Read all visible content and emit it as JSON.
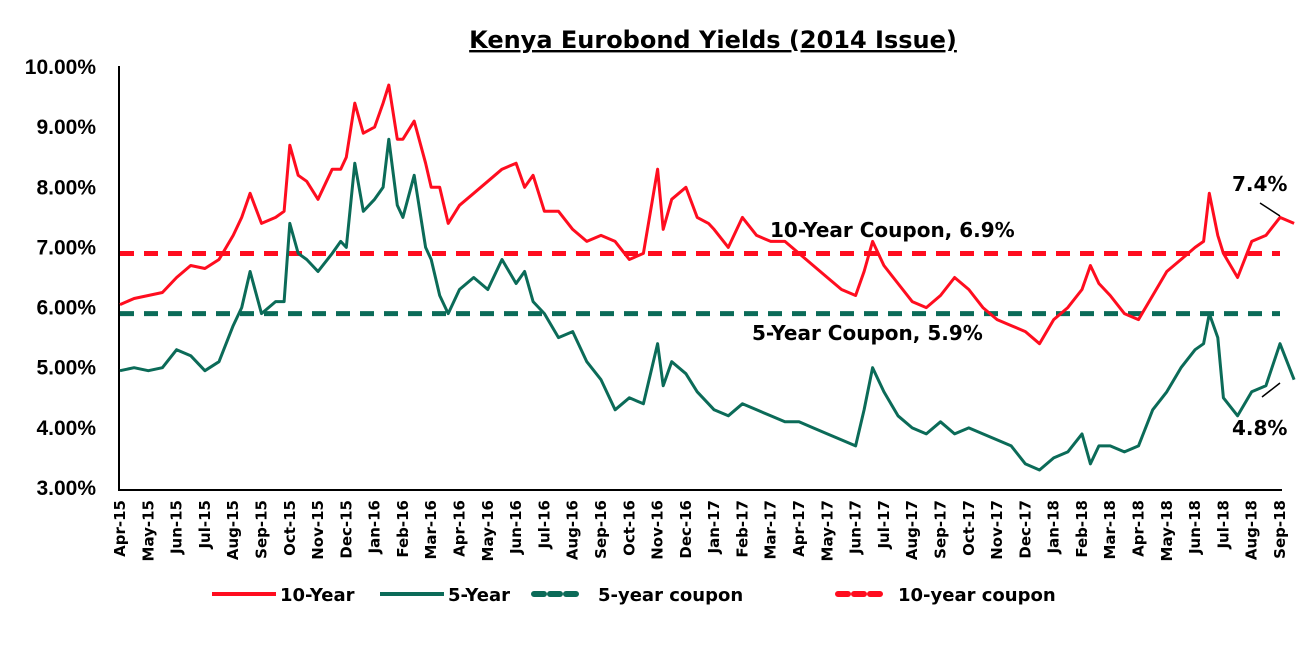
{
  "chart_data": {
    "type": "line",
    "title": "Kenya Eurobond Yields (2014 Issue)",
    "xlabel": "",
    "ylabel": "",
    "ylim": [
      3.0,
      10.0
    ],
    "yticks": [
      "10.00%",
      "9.00%",
      "8.00%",
      "7.00%",
      "6.00%",
      "5.00%",
      "4.00%",
      "3.00%"
    ],
    "ytick_values": [
      10,
      9,
      8,
      7,
      6,
      5,
      4,
      3
    ],
    "categories": [
      "Apr-15",
      "May-15",
      "Jun-15",
      "Jul-15",
      "Aug-15",
      "Sep-15",
      "Oct-15",
      "Nov-15",
      "Dec-15",
      "Jan-16",
      "Feb-16",
      "Mar-16",
      "Apr-16",
      "May-16",
      "Jun-16",
      "Jul-16",
      "Aug-16",
      "Sep-16",
      "Oct-16",
      "Nov-16",
      "Dec-16",
      "Jan-17",
      "Feb-17",
      "Mar-17",
      "Apr-17",
      "May-17",
      "Jun-17",
      "Jul-17",
      "Aug-17",
      "Sep-17",
      "Oct-17",
      "Nov-17",
      "Dec-17",
      "Jan-18",
      "Feb-18",
      "Mar-18",
      "Apr-18",
      "May-18",
      "Jun-18",
      "Jul-18",
      "Aug-18",
      "Sep-18"
    ],
    "grid": false,
    "legend_position": "bottom",
    "series": [
      {
        "name": "10-Year",
        "color": "#ff0d1f",
        "style": "solid",
        "x": [
          0,
          0.5,
          1,
          1.5,
          2,
          2.5,
          3,
          3.5,
          4,
          4.3,
          4.6,
          5,
          5.5,
          5.8,
          6,
          6.3,
          6.6,
          7,
          7.5,
          7.8,
          8,
          8.3,
          8.6,
          9,
          9.3,
          9.5,
          9.8,
          10,
          10.4,
          10.8,
          11,
          11.3,
          11.6,
          12,
          12.5,
          13,
          13.5,
          14,
          14.3,
          14.6,
          15,
          15.5,
          16,
          16.5,
          17,
          17.5,
          18,
          18.5,
          19,
          19.2,
          19.5,
          20,
          20.4,
          20.8,
          21,
          21.5,
          22,
          22.5,
          23,
          23.5,
          24,
          24.5,
          25,
          25.5,
          26,
          26.3,
          26.6,
          27,
          27.5,
          28,
          28.5,
          29,
          29.5,
          30,
          30.5,
          31,
          31.5,
          32,
          32.5,
          33,
          33.5,
          34,
          34.3,
          34.6,
          35,
          35.5,
          36,
          36.5,
          37,
          37.5,
          38,
          38.3,
          38.5,
          38.8,
          39,
          39.5,
          40,
          40.5,
          41,
          41.5
        ],
        "values": [
          6.05,
          6.15,
          6.2,
          6.25,
          6.5,
          6.7,
          6.65,
          6.8,
          7.2,
          7.5,
          7.9,
          7.4,
          7.5,
          7.6,
          8.7,
          8.2,
          8.1,
          7.8,
          8.3,
          8.3,
          8.5,
          9.4,
          8.9,
          9.0,
          9.4,
          9.7,
          8.8,
          8.8,
          9.1,
          8.4,
          8.0,
          8.0,
          7.4,
          7.7,
          7.9,
          8.1,
          8.3,
          8.4,
          8.0,
          8.2,
          7.6,
          7.6,
          7.3,
          7.1,
          7.2,
          7.1,
          6.8,
          6.9,
          8.3,
          7.3,
          7.8,
          8.0,
          7.5,
          7.4,
          7.3,
          7.0,
          7.5,
          7.2,
          7.1,
          7.1,
          6.9,
          6.7,
          6.5,
          6.3,
          6.2,
          6.6,
          7.1,
          6.7,
          6.4,
          6.1,
          6.0,
          6.2,
          6.5,
          6.3,
          6.0,
          5.8,
          5.7,
          5.6,
          5.4,
          5.8,
          6.0,
          6.3,
          6.7,
          6.4,
          6.2,
          5.9,
          5.8,
          6.2,
          6.6,
          6.8,
          7.0,
          7.1,
          7.9,
          7.2,
          6.9,
          6.5,
          7.1,
          7.2,
          7.5,
          7.4
        ]
      },
      {
        "name": "5-Year",
        "color": "#0b6b58",
        "style": "solid",
        "x": [
          0,
          0.5,
          1,
          1.5,
          2,
          2.5,
          3,
          3.5,
          4,
          4.3,
          4.6,
          5,
          5.5,
          5.8,
          6,
          6.3,
          6.6,
          7,
          7.5,
          7.8,
          8,
          8.3,
          8.6,
          9,
          9.3,
          9.5,
          9.8,
          10,
          10.4,
          10.8,
          11,
          11.3,
          11.6,
          12,
          12.5,
          13,
          13.5,
          14,
          14.3,
          14.6,
          15,
          15.5,
          16,
          16.5,
          17,
          17.5,
          18,
          18.5,
          19,
          19.2,
          19.5,
          20,
          20.4,
          20.8,
          21,
          21.5,
          22,
          22.5,
          23,
          23.5,
          24,
          24.5,
          25,
          25.5,
          26,
          26.3,
          26.6,
          27,
          27.5,
          28,
          28.5,
          29,
          29.5,
          30,
          30.5,
          31,
          31.5,
          32,
          32.5,
          33,
          33.5,
          34,
          34.3,
          34.6,
          35,
          35.5,
          36,
          36.5,
          37,
          37.5,
          38,
          38.3,
          38.5,
          38.8,
          39,
          39.5,
          40,
          40.5,
          41,
          41.5
        ],
        "values": [
          4.95,
          5.0,
          4.95,
          5.0,
          5.3,
          5.2,
          4.95,
          5.1,
          5.7,
          6.0,
          6.6,
          5.9,
          6.1,
          6.1,
          7.4,
          6.9,
          6.8,
          6.6,
          6.9,
          7.1,
          7.0,
          8.4,
          7.6,
          7.8,
          8.0,
          8.8,
          7.7,
          7.5,
          8.2,
          7.0,
          6.8,
          6.2,
          5.9,
          6.3,
          6.5,
          6.3,
          6.8,
          6.4,
          6.6,
          6.1,
          5.9,
          5.5,
          5.6,
          5.1,
          4.8,
          4.3,
          4.5,
          4.4,
          5.4,
          4.7,
          5.1,
          4.9,
          4.6,
          4.4,
          4.3,
          4.2,
          4.4,
          4.3,
          4.2,
          4.1,
          4.1,
          4.0,
          3.9,
          3.8,
          3.7,
          4.3,
          5.0,
          4.6,
          4.2,
          4.0,
          3.9,
          4.1,
          3.9,
          4.0,
          3.9,
          3.8,
          3.7,
          3.4,
          3.3,
          3.5,
          3.6,
          3.9,
          3.4,
          3.7,
          3.7,
          3.6,
          3.7,
          4.3,
          4.6,
          5.0,
          5.3,
          5.4,
          5.9,
          5.5,
          4.5,
          4.2,
          4.6,
          4.7,
          5.4,
          4.8
        ]
      },
      {
        "name": "5-year coupon",
        "color": "#0b6b58",
        "style": "dashed",
        "value": 5.9
      },
      {
        "name": "10-year coupon",
        "color": "#ff0d1f",
        "style": "dashed",
        "value": 6.9
      }
    ],
    "annotations": [
      {
        "text": "10-Year Coupon, 6.9%",
        "target": "10-year coupon"
      },
      {
        "text": "5-Year Coupon, 5.9%",
        "target": "5-year coupon"
      },
      {
        "text": "7.4%",
        "target": "10-Year",
        "at": "Sep-18",
        "value": 7.4
      },
      {
        "text": "4.8%",
        "target": "5-Year",
        "at": "Sep-18",
        "value": 4.8
      }
    ]
  }
}
